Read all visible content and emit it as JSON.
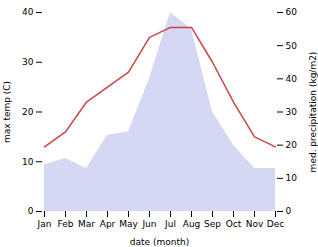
{
  "chart_data": {
    "type": "line",
    "categories": [
      "Jan",
      "Feb",
      "Mar",
      "Apr",
      "May",
      "Jun",
      "Jul",
      "Aug",
      "Sep",
      "Oct",
      "Nov",
      "Dec"
    ],
    "series": [
      {
        "type": "area",
        "axis": "y2",
        "color": "#b0b8e8",
        "values": [
          14,
          16,
          13,
          23,
          24,
          40,
          60,
          55,
          30,
          20,
          13,
          13
        ]
      },
      {
        "type": "line",
        "color": "#cc4444",
        "values": [
          13,
          16,
          22,
          25,
          28,
          35,
          37,
          37,
          30,
          22,
          15,
          13
        ]
      }
    ],
    "xlabel": "date (month)",
    "ylabel": "max temp (C)",
    "y2label": "med. precipitation (kg/m2)",
    "ylim": [
      0,
      40
    ],
    "yticks": [
      0,
      10,
      20,
      30,
      40
    ],
    "y2lim": [
      0,
      60
    ],
    "y2ticks": [
      0,
      10,
      20,
      30,
      40,
      50,
      60
    ]
  }
}
